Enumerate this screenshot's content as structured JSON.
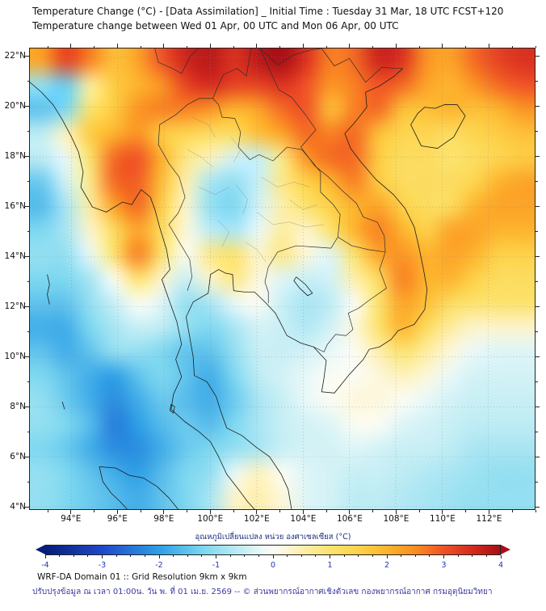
{
  "header": {
    "title_line1": "Temperature Change (°C) - [Data Assimilation] _ Initial Time : Tuesday 31 Mar, 18 UTC FCST+120",
    "title_line2": "Temperature change between Wed 01 Apr, 00 UTC and Mon 06 Apr, 00 UTC"
  },
  "footer": {
    "line1": "WRF-DA Domain 01 :: Grid Resolution 9km x 9km",
    "line2": "ปรับปรุงข้อมูล ณ เวลา 01:00น. วัน พ. ที่ 01 เม.ย. 2569 -- © ส่วนพยากรณ์อากาศเชิงตัวเลข กองพยากรณ์อากาศ กรมอุตุนิยมวิทยา"
  },
  "chart_data": {
    "type": "heatmap",
    "title": "Temperature Change (°C) - [Data Assimilation]",
    "subtitle": "Temperature change between Wed 01 Apr, 00 UTC and Mon 06 Apr, 00 UTC",
    "grid_on": true,
    "legend_position": "bottom",
    "lon_range": [
      92.2,
      114.0
    ],
    "lat_range": [
      3.9,
      22.35
    ],
    "x_axis": {
      "ticks": [
        {
          "value": 94,
          "label": "94°E"
        },
        {
          "value": 96,
          "label": "96°E"
        },
        {
          "value": 98,
          "label": "98°E"
        },
        {
          "value": 100,
          "label": "100°E"
        },
        {
          "value": 102,
          "label": "102°E"
        },
        {
          "value": 104,
          "label": "104°E"
        },
        {
          "value": 106,
          "label": "106°E"
        },
        {
          "value": 108,
          "label": "108°E"
        },
        {
          "value": 110,
          "label": "110°E"
        },
        {
          "value": 112,
          "label": "112°E"
        }
      ]
    },
    "y_axis": {
      "ticks": [
        {
          "value": 4,
          "label": "4°N"
        },
        {
          "value": 6,
          "label": "6°N"
        },
        {
          "value": 8,
          "label": "8°N"
        },
        {
          "value": 10,
          "label": "10°N"
        },
        {
          "value": 12,
          "label": "12°N"
        },
        {
          "value": 14,
          "label": "14°N"
        },
        {
          "value": 16,
          "label": "16°N"
        },
        {
          "value": 18,
          "label": "18°N"
        },
        {
          "value": 20,
          "label": "20°N"
        },
        {
          "value": 22,
          "label": "22°N"
        }
      ]
    },
    "colorbar": {
      "label": "อุณหภูมิเปลี่ยนแปลง หน่วย องศาเซลเซียส (°C)",
      "range": [
        -4,
        4
      ],
      "ticks": [
        {
          "value": -4,
          "label": "-4"
        },
        {
          "value": -3,
          "label": "-3"
        },
        {
          "value": -2,
          "label": "-2"
        },
        {
          "value": -1,
          "label": "-1"
        },
        {
          "value": 0,
          "label": "0"
        },
        {
          "value": 1,
          "label": "1"
        },
        {
          "value": 2,
          "label": "2"
        },
        {
          "value": 3,
          "label": "3"
        },
        {
          "value": 4,
          "label": "4"
        }
      ],
      "minor_tick_step": 0.25
    },
    "colormap": {
      "stops": [
        {
          "v": -4.0,
          "c": "#071e7a"
        },
        {
          "v": -3.0,
          "c": "#1f49c9"
        },
        {
          "v": -2.0,
          "c": "#2e9fe6"
        },
        {
          "v": -1.2,
          "c": "#7fd8f0"
        },
        {
          "v": -0.5,
          "c": "#c8eff5"
        },
        {
          "v": -0.15,
          "c": "#eefaf8"
        },
        {
          "v": 0.0,
          "c": "#fbfcf4"
        },
        {
          "v": 0.15,
          "c": "#fcf8e4"
        },
        {
          "v": 0.5,
          "c": "#fdefae"
        },
        {
          "v": 1.0,
          "c": "#fce36e"
        },
        {
          "v": 1.5,
          "c": "#fdd24a"
        },
        {
          "v": 2.0,
          "c": "#fdb42e"
        },
        {
          "v": 2.5,
          "c": "#fb8d22"
        },
        {
          "v": 3.0,
          "c": "#f05326"
        },
        {
          "v": 3.5,
          "c": "#d62a1e"
        },
        {
          "v": 4.0,
          "c": "#a80f15"
        }
      ]
    },
    "grid": {
      "lons": [
        93,
        94,
        95,
        96,
        97,
        98,
        99,
        100,
        101,
        102,
        103,
        104,
        105,
        106,
        107,
        108,
        109,
        110,
        111,
        112,
        113
      ],
      "lats": [
        22,
        21,
        20,
        19,
        18,
        17,
        16,
        15,
        14,
        13,
        12,
        11,
        10,
        9,
        8,
        7,
        6,
        5,
        4
      ],
      "values": [
        [
          2.2,
          3.2,
          2.6,
          1.8,
          2.2,
          3.0,
          3.6,
          3.8,
          3.4,
          3.8,
          4.0,
          3.4,
          2.6,
          2.8,
          3.6,
          3.4,
          2.4,
          2.2,
          2.8,
          3.2,
          3.4
        ],
        [
          -1.0,
          -1.4,
          0.6,
          1.6,
          2.0,
          2.4,
          3.2,
          3.5,
          3.2,
          3.2,
          3.4,
          3.0,
          2.4,
          2.6,
          3.0,
          2.8,
          2.2,
          2.0,
          2.4,
          2.8,
          3.0
        ],
        [
          -1.5,
          -1.2,
          1.0,
          1.6,
          2.4,
          2.6,
          2.6,
          2.4,
          2.0,
          2.2,
          2.8,
          3.0,
          1.8,
          2.6,
          2.8,
          1.8,
          1.8,
          2.0,
          1.8,
          2.0,
          2.4
        ],
        [
          -0.6,
          0.4,
          1.6,
          2.0,
          2.4,
          1.6,
          1.4,
          1.2,
          1.2,
          1.8,
          2.2,
          2.8,
          2.6,
          2.8,
          1.8,
          1.4,
          1.4,
          1.2,
          1.4,
          1.6,
          1.8
        ],
        [
          -0.6,
          -0.2,
          1.0,
          2.8,
          3.0,
          2.0,
          0.8,
          0.4,
          -0.4,
          -0.5,
          0.8,
          2.4,
          2.8,
          2.8,
          1.6,
          1.2,
          1.2,
          1.0,
          1.2,
          1.4,
          1.6
        ],
        [
          -1.4,
          -0.4,
          0.8,
          2.8,
          2.9,
          1.8,
          0.5,
          -0.8,
          -1.0,
          -0.5,
          0.8,
          1.5,
          2.0,
          2.6,
          1.6,
          1.2,
          1.2,
          1.2,
          1.4,
          2.0,
          2.2
        ],
        [
          -1.6,
          -0.8,
          0.6,
          2.2,
          2.8,
          1.5,
          0.3,
          -1.0,
          -1.2,
          -0.4,
          0.5,
          1.0,
          1.5,
          2.0,
          2.2,
          1.5,
          1.2,
          1.2,
          2.0,
          2.2,
          2.2
        ],
        [
          -1.2,
          -0.8,
          0.3,
          1.2,
          2.2,
          1.2,
          0.2,
          -0.6,
          -0.8,
          -0.2,
          0.6,
          0.3,
          1.0,
          2.0,
          2.6,
          2.0,
          1.5,
          2.2,
          2.2,
          2.0,
          2.0
        ],
        [
          -1.0,
          -1.0,
          -0.2,
          1.0,
          2.6,
          1.0,
          0.0,
          0.8,
          1.0,
          0.3,
          0.8,
          0.2,
          -0.3,
          1.0,
          2.2,
          2.4,
          2.0,
          2.2,
          2.0,
          1.5,
          1.5
        ],
        [
          -1.2,
          -1.2,
          -0.8,
          0.0,
          1.0,
          0.3,
          -0.5,
          0.3,
          0.8,
          0.2,
          -0.3,
          -0.5,
          -0.4,
          0.5,
          1.2,
          2.6,
          2.0,
          2.0,
          1.5,
          1.2,
          1.2
        ],
        [
          -1.5,
          -1.5,
          -1.0,
          -0.5,
          0.0,
          -0.3,
          -1.0,
          -0.8,
          -0.2,
          0.0,
          -0.5,
          -0.8,
          -0.6,
          0.0,
          1.0,
          2.2,
          1.8,
          1.2,
          1.0,
          1.0,
          1.0
        ],
        [
          -1.8,
          -1.8,
          -1.2,
          -0.8,
          -0.5,
          -0.6,
          -1.0,
          -1.2,
          -0.8,
          -0.4,
          -0.5,
          -0.7,
          -0.4,
          0.2,
          1.0,
          2.0,
          1.2,
          0.6,
          0.3,
          0.3,
          0.3
        ],
        [
          -1.5,
          -1.8,
          -1.5,
          -1.0,
          -1.0,
          -1.2,
          -1.5,
          -1.5,
          -1.0,
          -0.5,
          -0.5,
          -0.4,
          -0.2,
          0.0,
          0.5,
          1.0,
          0.6,
          0.2,
          -0.2,
          -0.3,
          -0.3
        ],
        [
          -1.2,
          -1.5,
          -1.8,
          -2.0,
          -1.5,
          -1.2,
          -1.5,
          -1.8,
          -1.2,
          -0.6,
          -0.4,
          -0.2,
          0.0,
          0.0,
          0.2,
          0.4,
          0.2,
          -0.2,
          -0.4,
          -0.4,
          -0.4
        ],
        [
          -1.0,
          -1.4,
          -1.8,
          -2.2,
          -1.8,
          -1.4,
          -1.6,
          -1.8,
          -1.4,
          -0.8,
          -0.5,
          -0.2,
          0.0,
          0.2,
          0.2,
          0.0,
          -0.2,
          -0.4,
          -0.5,
          -0.5,
          -0.5
        ],
        [
          -1.0,
          -1.2,
          -1.6,
          -2.4,
          -2.0,
          -1.6,
          -1.4,
          -1.6,
          -1.2,
          -0.8,
          -0.5,
          -0.4,
          -0.3,
          0.0,
          0.0,
          -0.3,
          -0.4,
          -0.5,
          -0.6,
          -0.6,
          -0.6
        ],
        [
          -1.2,
          -1.4,
          -1.8,
          -2.2,
          -2.2,
          -1.8,
          -1.4,
          -1.2,
          -1.0,
          -0.8,
          -0.5,
          -0.4,
          -0.4,
          -0.3,
          -0.4,
          -0.5,
          -0.5,
          -0.6,
          -0.8,
          -0.8,
          -0.8
        ],
        [
          -1.0,
          -1.2,
          -1.5,
          -1.8,
          -2.0,
          -1.6,
          -1.2,
          -1.0,
          -0.2,
          0.4,
          0.0,
          -0.3,
          -0.4,
          -0.5,
          -0.5,
          -0.6,
          -0.7,
          -0.8,
          -0.9,
          -1.0,
          -1.0
        ],
        [
          -1.0,
          -1.2,
          -1.4,
          -1.6,
          -1.8,
          -1.5,
          -1.2,
          -0.8,
          0.3,
          0.5,
          0.2,
          -0.3,
          -0.4,
          -0.6,
          -0.6,
          -0.7,
          -0.8,
          -0.9,
          -1.0,
          -1.0,
          -1.0
        ]
      ]
    }
  }
}
